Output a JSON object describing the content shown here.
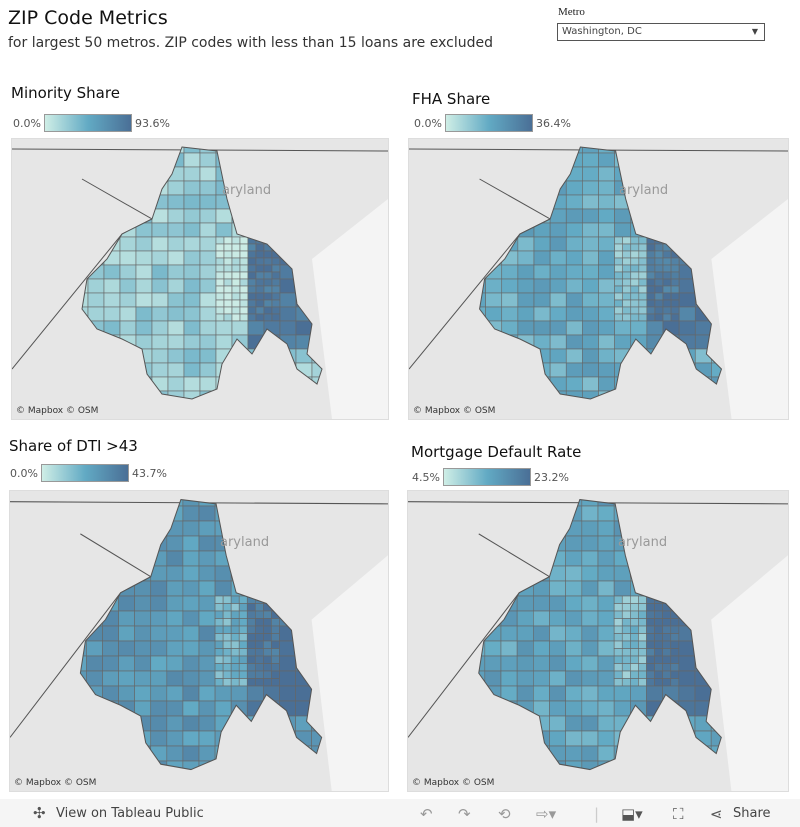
{
  "header": {
    "title": "ZIP Code Metrics",
    "subtitle": "for largest 50 metros. ZIP codes with less than 15 loans are excluded"
  },
  "filter": {
    "label": "Metro",
    "value": "Washington, DC"
  },
  "panels": [
    {
      "title": "Minority Share",
      "legend_min": "0.0%",
      "legend_max": "93.6%",
      "intensity": 0.25,
      "east_boost": 0.7
    },
    {
      "title": "FHA Share",
      "legend_min": "0.0%",
      "legend_max": "36.4%",
      "intensity": 0.5,
      "east_boost": 0.4
    },
    {
      "title": "Share of DTI >43",
      "legend_min": "0.0%",
      "legend_max": "43.7%",
      "intensity": 0.65,
      "east_boost": 0.3
    },
    {
      "title": "Mortgage Default Rate",
      "legend_min": "4.5%",
      "legend_max": "23.2%",
      "intensity": 0.55,
      "east_boost": 0.45
    }
  ],
  "map": {
    "place_label": "aryland",
    "credit": "© Mapbox  © OSM"
  },
  "colors": {
    "low": "#cfeee6",
    "mid": "#62aac4",
    "high": "#4a6f96"
  },
  "toolbar": {
    "view_on": "View on Tableau Public",
    "share": "Share"
  }
}
